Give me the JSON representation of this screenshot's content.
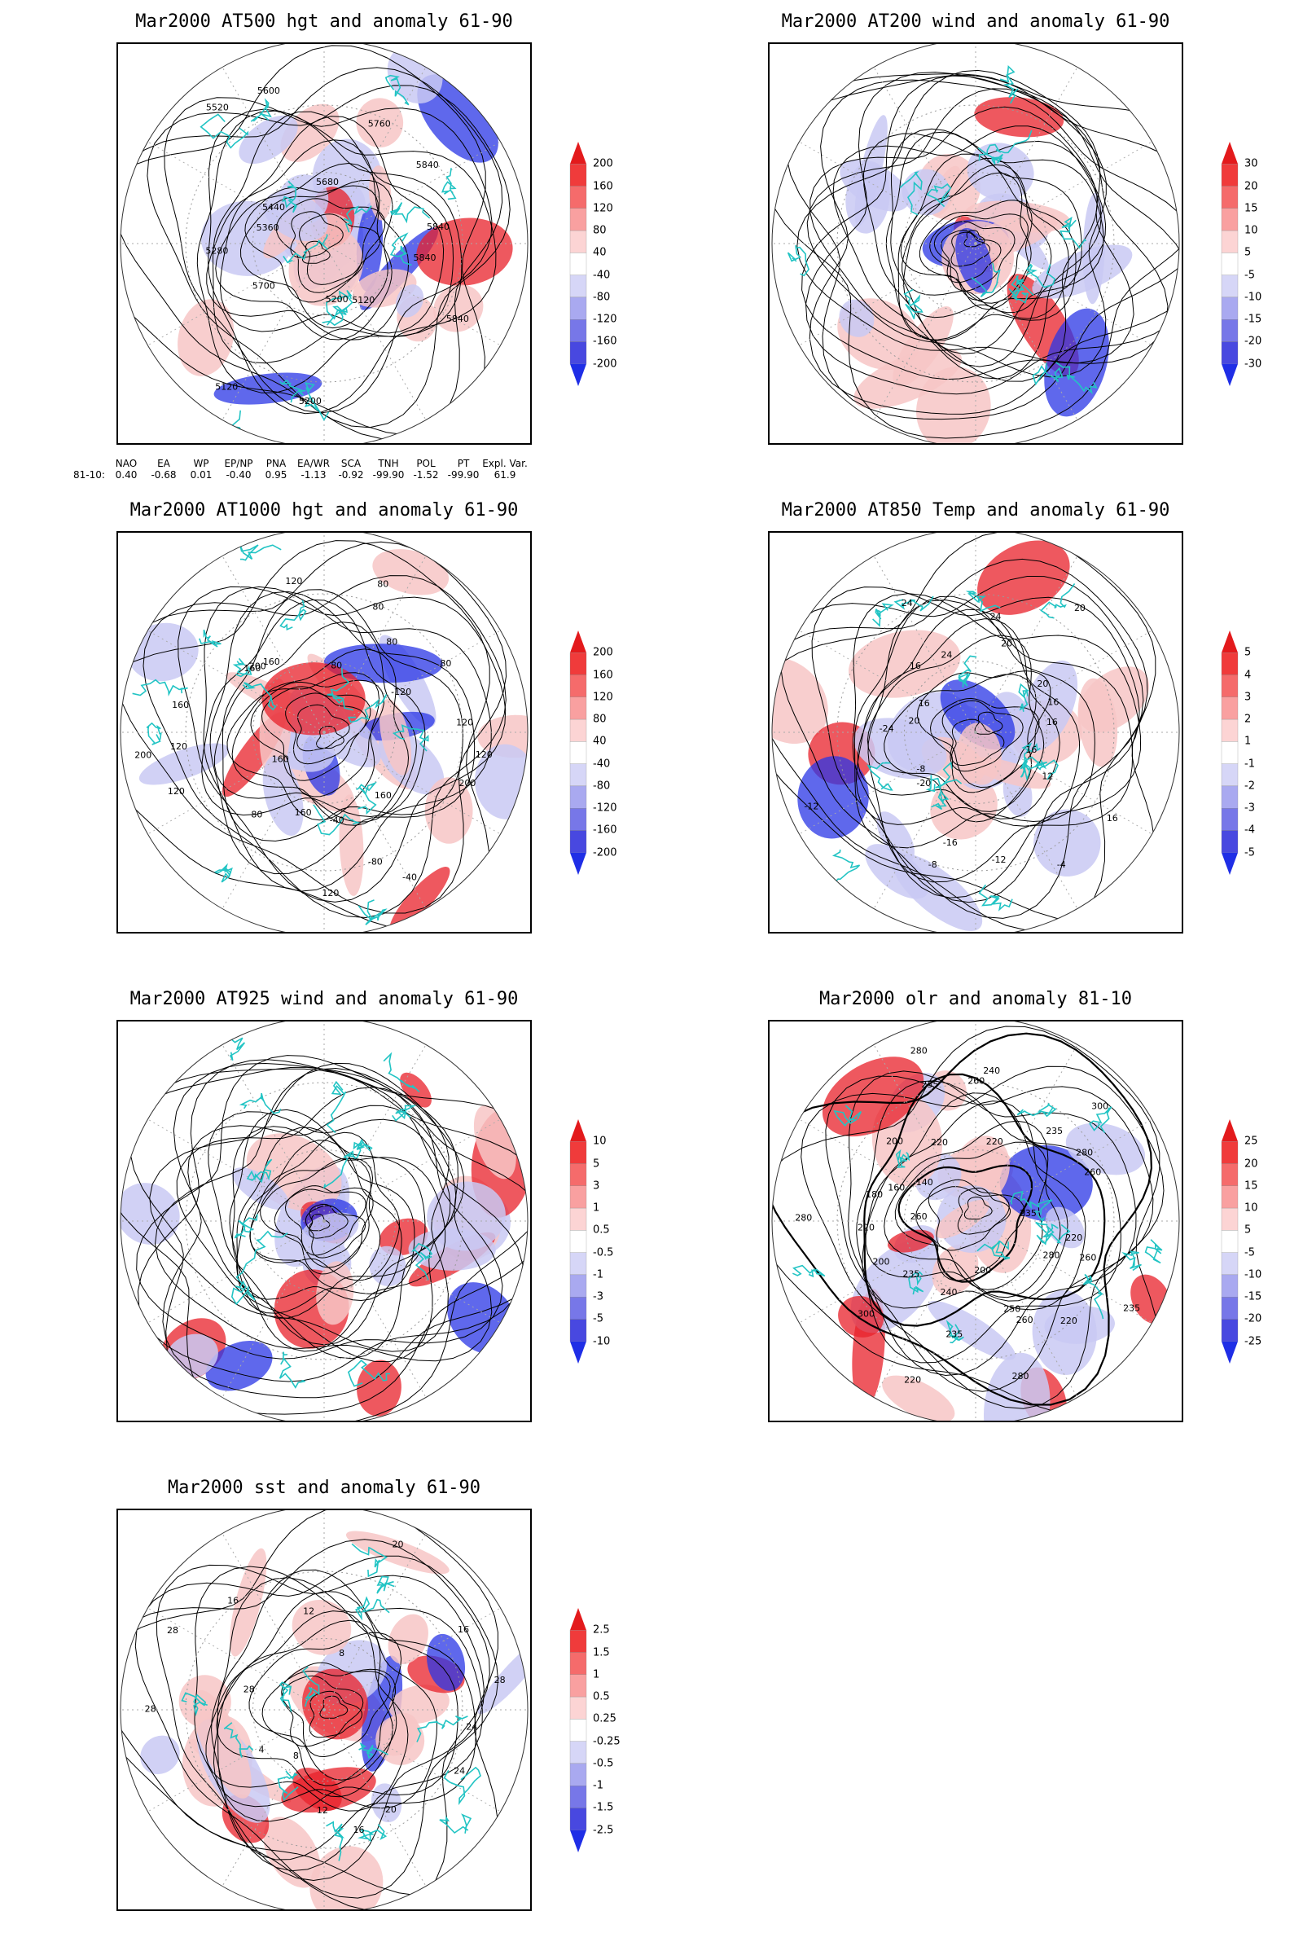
{
  "colors": {
    "coast": "#22c4c4",
    "contour": "#000000",
    "pos_strong": "#e8202a",
    "pos_light": "#f7c6c6",
    "neg_light": "#c9c9f3",
    "neg_strong": "#2a35e6"
  },
  "panels": [
    {
      "id": "z500",
      "title": "Mar2000 AT500 hgt and anomaly 61-90",
      "colorbar": [
        "200",
        "160",
        "120",
        "80",
        "40",
        "-40",
        "-80",
        "-120",
        "-160",
        "-200"
      ],
      "contour_labels": [
        "5840",
        "5840",
        "5120",
        "5200",
        "5200",
        "5120",
        "5700",
        "5280",
        "5360",
        "5440",
        "5520",
        "5600",
        "5680",
        "5760",
        "5840",
        "5840"
      ],
      "map_style": "z500"
    },
    {
      "id": "u200",
      "title": "Mar2000 AT200 wind and anomaly 61-90",
      "colorbar": [
        "30",
        "20",
        "15",
        "10",
        "5",
        "-5",
        "-10",
        "-15",
        "-20",
        "-30"
      ],
      "contour_labels": [],
      "map_style": "u200"
    },
    {
      "id": "z1000",
      "title": "Mar2000 AT1000 hgt and anomaly 61-90",
      "colorbar": [
        "200",
        "160",
        "120",
        "80",
        "40",
        "-40",
        "-80",
        "-120",
        "-160",
        "-200"
      ],
      "contour_labels": [
        "120",
        "200",
        "160",
        "-40",
        "-80",
        "-40",
        "120",
        "160",
        "80",
        "160",
        "120",
        "200",
        "120",
        "160",
        "160",
        "200",
        "160",
        "120",
        "80",
        "80",
        "80",
        "80",
        "80",
        "-120",
        "120"
      ],
      "map_style": "z1000"
    },
    {
      "id": "t850",
      "title": "Mar2000 AT850 Temp and anomaly 61-90",
      "colorbar": [
        "5",
        "4",
        "3",
        "2",
        "1",
        "-1",
        "-2",
        "-3",
        "-4",
        "-5"
      ],
      "contour_labels": [
        "16",
        "12",
        "16",
        "-4",
        "-12",
        "-16",
        "-8",
        "-20",
        "-8",
        "-12",
        "-24",
        "20",
        "16",
        "16",
        "24",
        "24",
        "24",
        "20",
        "20",
        "20",
        "16",
        "16"
      ],
      "map_style": "t850"
    },
    {
      "id": "u925",
      "title": "Mar2000 AT925 wind and anomaly 61-90",
      "colorbar": [
        "10",
        "5",
        "3",
        "1",
        "0.5",
        "-0.5",
        "-1",
        "-3",
        "-5",
        "-10"
      ],
      "contour_labels": [],
      "map_style": "u925"
    },
    {
      "id": "olr",
      "title": "Mar2000 olr and anomaly 81-10",
      "colorbar": [
        "25",
        "20",
        "15",
        "10",
        "5",
        "-5",
        "-10",
        "-15",
        "-20",
        "-25"
      ],
      "contour_labels": [
        "260",
        "280",
        "235",
        "220",
        "260",
        "280",
        "250",
        "200",
        "235",
        "220",
        "240",
        "235",
        "300",
        "200",
        "220",
        "260",
        "280",
        "180",
        "160",
        "140",
        "200",
        "235",
        "220",
        "280",
        "260",
        "240",
        "220",
        "235",
        "300",
        "280",
        "260",
        "235",
        "220"
      ],
      "map_style": "olr"
    },
    {
      "id": "sst",
      "title": "Mar2000 sst and anomaly 61-90",
      "colorbar": [
        "2.5",
        "1.5",
        "1",
        "0.5",
        "0.25",
        "-0.25",
        "-0.5",
        "-1",
        "-1.5",
        "-2.5"
      ],
      "contour_labels": [
        "24",
        "24",
        "20",
        "16",
        "12",
        "8",
        "4",
        "28",
        "28",
        "28",
        "16",
        "12",
        "8",
        "20",
        "16",
        "28"
      ],
      "map_style": "sst"
    }
  ],
  "indices": {
    "headers": [
      "NAO",
      "EA",
      "WP",
      "EP/NP",
      "PNA",
      "EA/WR",
      "SCA",
      "TNH",
      "POL",
      "PT",
      "Expl. Var."
    ],
    "row_label": "81-10:",
    "values": [
      "0.40",
      "-0.68",
      "0.01",
      "-0.40",
      "0.95",
      "-1.13",
      "-0.92",
      "-99.90",
      "-1.52",
      "-99.90",
      "61.9"
    ]
  }
}
